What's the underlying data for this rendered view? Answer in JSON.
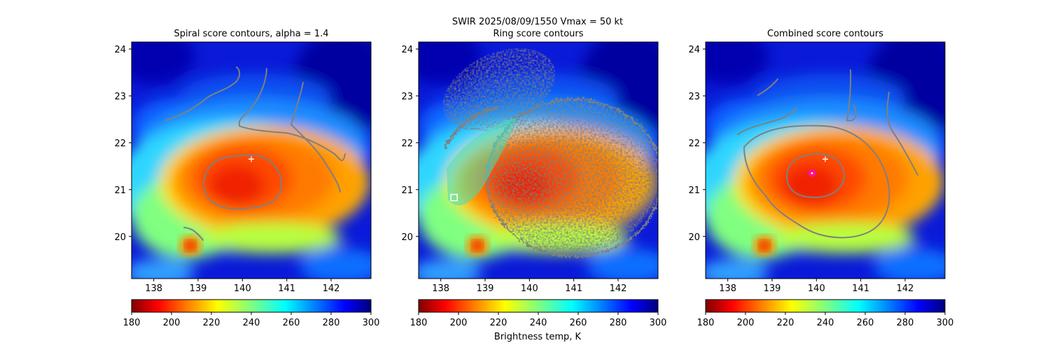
{
  "suptitle": "SWIR  2025/08/09/1550    Vmax = 50 kt",
  "colorbar_label": "Brightness temp, K",
  "chart_data": [
    {
      "type": "heatmap",
      "title": "Spiral score contours, alpha =  1.4",
      "xlim": [
        137.5,
        142.9
      ],
      "ylim": [
        19.1,
        24.15
      ],
      "xticks": [
        "138",
        "139",
        "140",
        "141",
        "142"
      ],
      "yticks": [
        "20",
        "21",
        "22",
        "23",
        "24"
      ],
      "colorbar": {
        "range": [
          180,
          300
        ],
        "ticks": [
          "180",
          "200",
          "220",
          "240",
          "260",
          "280",
          "300"
        ],
        "colormap": "jet_r"
      },
      "markers": [
        {
          "kind": "plus",
          "x": 140.2,
          "y": 21.65,
          "color": "#ffffff"
        }
      ]
    },
    {
      "type": "heatmap",
      "title": "Ring score contours",
      "xlim": [
        137.5,
        142.9
      ],
      "ylim": [
        19.1,
        24.15
      ],
      "xticks": [
        "138",
        "139",
        "140",
        "141",
        "142"
      ],
      "yticks": [
        "20",
        "21",
        "22",
        "23",
        "24"
      ],
      "colorbar": {
        "range": [
          180,
          300
        ],
        "ticks": [
          "180",
          "200",
          "220",
          "240",
          "260",
          "280",
          "300"
        ],
        "colormap": "jet_r"
      },
      "markers": [
        {
          "kind": "square",
          "x": 138.3,
          "y": 20.83,
          "color": "#ffffff"
        }
      ]
    },
    {
      "type": "heatmap",
      "title": "Combined score contours",
      "xlim": [
        137.5,
        142.9
      ],
      "ylim": [
        19.1,
        24.15
      ],
      "xticks": [
        "138",
        "139",
        "140",
        "141",
        "142"
      ],
      "yticks": [
        "20",
        "21",
        "22",
        "23",
        "24"
      ],
      "colorbar": {
        "range": [
          180,
          300
        ],
        "ticks": [
          "180",
          "200",
          "220",
          "240",
          "260",
          "280",
          "300"
        ],
        "colormap": "jet_r"
      },
      "markers": [
        {
          "kind": "plus",
          "x": 140.2,
          "y": 21.65,
          "color": "#ffffff"
        },
        {
          "kind": "circle",
          "x": 139.9,
          "y": 21.35,
          "color": "#ff00ff"
        }
      ]
    }
  ],
  "colors": {
    "contour": "#808080",
    "frame": "#000000"
  }
}
